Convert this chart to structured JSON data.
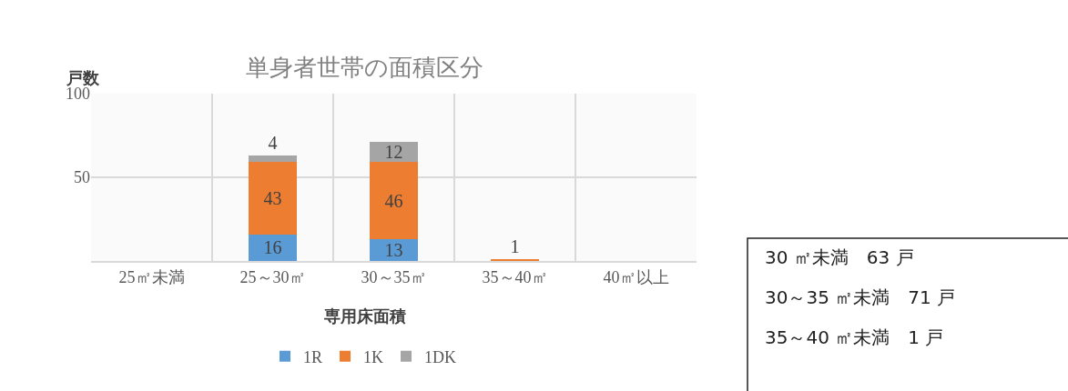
{
  "chart_data": {
    "type": "bar",
    "title": "単身者世帯の面積区分",
    "xlabel": "専用床面積",
    "ylabel": "戸数",
    "categories": [
      "25㎡未満",
      "25～30㎡",
      "30～35㎡",
      "35～40㎡",
      "40㎡以上"
    ],
    "series": [
      {
        "name": "1R",
        "color": "#5b9bd5",
        "values": [
          null,
          16,
          13,
          null,
          null
        ]
      },
      {
        "name": "1K",
        "color": "#ed7d31",
        "values": [
          null,
          43,
          46,
          1,
          null
        ]
      },
      {
        "name": "1DK",
        "color": "#a5a5a5",
        "values": [
          null,
          4,
          12,
          null,
          null
        ]
      }
    ],
    "stacked": true,
    "ylim": [
      0,
      100
    ],
    "yticks": [
      50,
      100
    ],
    "grid": true,
    "legend": "bottom",
    "data_labels": true,
    "annotations": [
      "30 ㎡未満　63 戸",
      "30～35 ㎡未満　71 戸",
      "35～40 ㎡未満　1 戸"
    ]
  }
}
